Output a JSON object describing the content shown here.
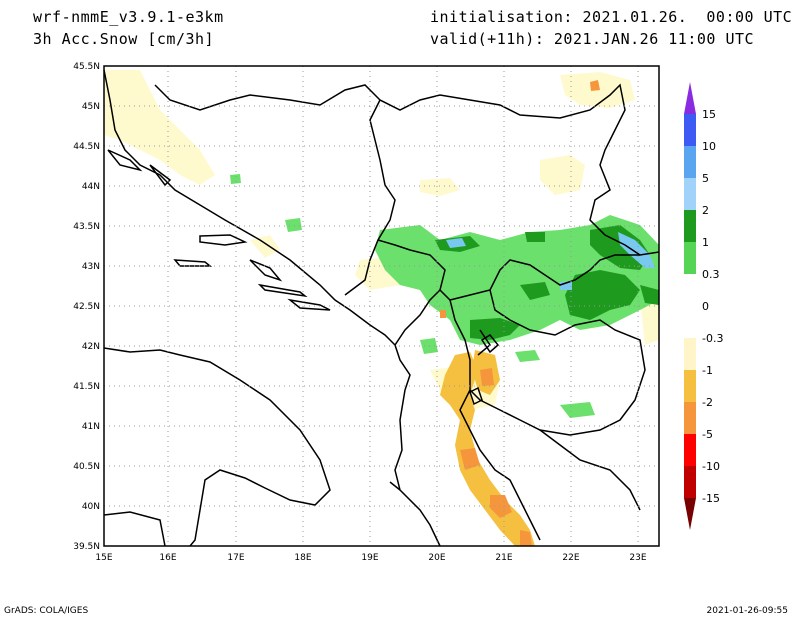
{
  "header": {
    "model": "wrf-nmmE_v3.9.1-e3km",
    "variable": "3h Acc.Snow [cm/3h]",
    "init": "initialisation: 2021.01.26.  00:00 UTC",
    "valid": "valid(+11h): 2021.JAN.26 11:00 UTC"
  },
  "footer": {
    "left": "GrADS: COLA/IGES",
    "right": "2021-01-26-09:55"
  },
  "axes": {
    "lon_labels": [
      "15E",
      "16E",
      "17E",
      "18E",
      "19E",
      "20E",
      "21E",
      "22E",
      "23E"
    ],
    "lat_labels": [
      "39.5N",
      "40N",
      "40.5N",
      "41N",
      "41.5N",
      "42N",
      "42.5N",
      "43N",
      "43.5N",
      "44N",
      "44.5N",
      "45N",
      "45.5N"
    ],
    "lon_range": [
      15,
      23.3
    ],
    "lat_range": [
      39.5,
      45.5
    ],
    "grid": "dotted"
  },
  "colorbar": {
    "labels": [
      "15",
      "10",
      "5",
      "2",
      "1",
      "0.3",
      "0",
      "-0.3",
      "-1",
      "-2",
      "-5",
      "-10",
      "-15"
    ],
    "colors": [
      "#7a2ad4",
      "#3d5af5",
      "#5aa5f0",
      "#a0d2fa",
      "#1e9a1e",
      "#55d455",
      "#ffffff",
      "#ffffff",
      "#fff5c8",
      "#f5c040",
      "#f5963c",
      "#ff0000",
      "#c00000",
      "#780000"
    ]
  },
  "colors": {
    "light_green": "#6ce06c",
    "dark_green": "#1e9a1e",
    "light_blue": "#78c8f0",
    "cream": "#fffacd",
    "yellow_orange": "#f5c040",
    "orange": "#f5963c",
    "coast": "#000000"
  }
}
